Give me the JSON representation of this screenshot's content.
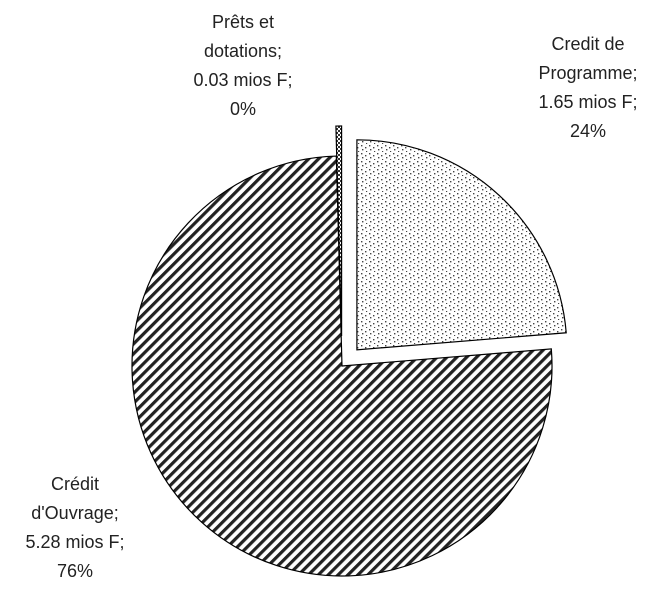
{
  "chart_data": {
    "type": "pie",
    "categories": [
      "Credit de Programme",
      "Crédit d'Ouvrage",
      "Prêts et dotations"
    ],
    "values": [
      1.65,
      5.28,
      0.03
    ],
    "value_labels": [
      "1.65 mios F",
      "5.28 mios F",
      "0.03 mios F"
    ],
    "percents": [
      24,
      76,
      0
    ],
    "percent_labels": [
      "24%",
      "76%",
      "0%"
    ],
    "separator": ";",
    "patterns": [
      "dots",
      "diagonal",
      "checker"
    ],
    "color": "#000000"
  }
}
